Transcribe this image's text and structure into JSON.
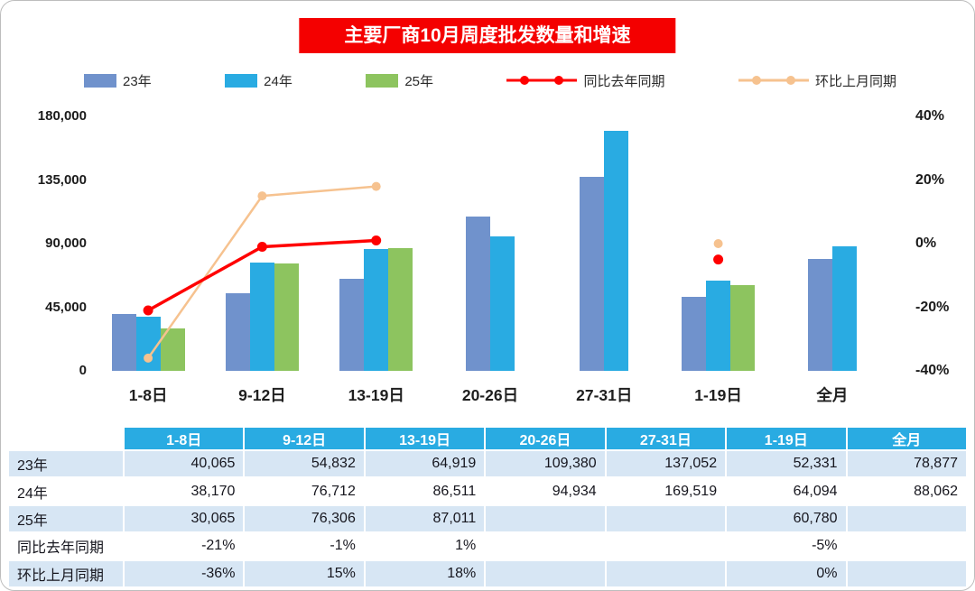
{
  "title": "主要厂商10月周度批发数量和增速",
  "legend": [
    {
      "label": "23年",
      "type": "swatch",
      "color": "#7092cc"
    },
    {
      "label": "24年",
      "type": "swatch",
      "color": "#29abe2"
    },
    {
      "label": "25年",
      "type": "swatch",
      "color": "#8dc45f"
    },
    {
      "label": "同比去年同期",
      "type": "line",
      "color": "#ff0000"
    },
    {
      "label": "环比上月同期",
      "type": "line",
      "color": "#f6c28f"
    }
  ],
  "chart_data": {
    "type": "bar",
    "title": "主要厂商10月周度批发数量和增速",
    "categories": [
      "1-8日",
      "9-12日",
      "13-19日",
      "20-26日",
      "27-31日",
      "1-19日",
      "全月"
    ],
    "bar_series": [
      {
        "name": "23年",
        "color": "#7092cc",
        "values": [
          40065,
          54832,
          64919,
          109380,
          137052,
          52331,
          78877
        ]
      },
      {
        "name": "24年",
        "color": "#29abe2",
        "values": [
          38170,
          76712,
          86511,
          94934,
          169519,
          64094,
          88062
        ]
      },
      {
        "name": "25年",
        "color": "#8dc45f",
        "values": [
          30065,
          76306,
          87011,
          null,
          null,
          60780,
          null
        ]
      }
    ],
    "line_series": [
      {
        "name": "同比去年同期",
        "color": "#ff0000",
        "width": 3.5,
        "marker": 5.5,
        "values_pct": [
          -21,
          -1,
          1,
          null,
          null,
          -5,
          null
        ],
        "connect": [
          0,
          1,
          2
        ]
      },
      {
        "name": "环比上月同期",
        "color": "#f6c28f",
        "width": 2.5,
        "marker": 5,
        "values_pct": [
          -36,
          15,
          18,
          null,
          null,
          0,
          null
        ],
        "connect": [
          0,
          1,
          2
        ]
      }
    ],
    "left_axis": {
      "min": 0,
      "max": 180000,
      "ticks": [
        "180,000",
        "135,000",
        "90,000",
        "45,000",
        "0"
      ]
    },
    "right_axis": {
      "min": -40,
      "max": 40,
      "ticks": [
        "40%",
        "20%",
        "0%",
        "-20%",
        "-40%"
      ]
    },
    "legend_position": "top",
    "grid": false
  },
  "table": {
    "header": [
      "",
      "1-8日",
      "9-12日",
      "13-19日",
      "20-26日",
      "27-31日",
      "1-19日",
      "全月"
    ],
    "rows": [
      {
        "label": "23年",
        "values": [
          "40,065",
          "54,832",
          "64,919",
          "109,380",
          "137,052",
          "52,331",
          "78,877"
        ]
      },
      {
        "label": "24年",
        "values": [
          "38,170",
          "76,712",
          "86,511",
          "94,934",
          "169,519",
          "64,094",
          "88,062"
        ]
      },
      {
        "label": "25年",
        "values": [
          "30,065",
          "76,306",
          "87,011",
          "",
          "",
          "60,780",
          ""
        ]
      },
      {
        "label": "同比去年同期",
        "values": [
          "-21%",
          "-1%",
          "1%",
          "",
          "",
          "-5%",
          ""
        ]
      },
      {
        "label": "环比上月同期",
        "values": [
          "-36%",
          "15%",
          "18%",
          "",
          "",
          "0%",
          ""
        ]
      }
    ]
  },
  "colors": {
    "title_bg": "#f40000",
    "title_text": "#ffffff",
    "table_header_bg": "#29abe2",
    "table_row_alt_bg": "#d7e6f4",
    "bar_23": "#7092cc",
    "bar_24": "#29abe2",
    "bar_25": "#8dc45f",
    "line_yoy": "#ff0000",
    "line_mom": "#f6c28f"
  }
}
